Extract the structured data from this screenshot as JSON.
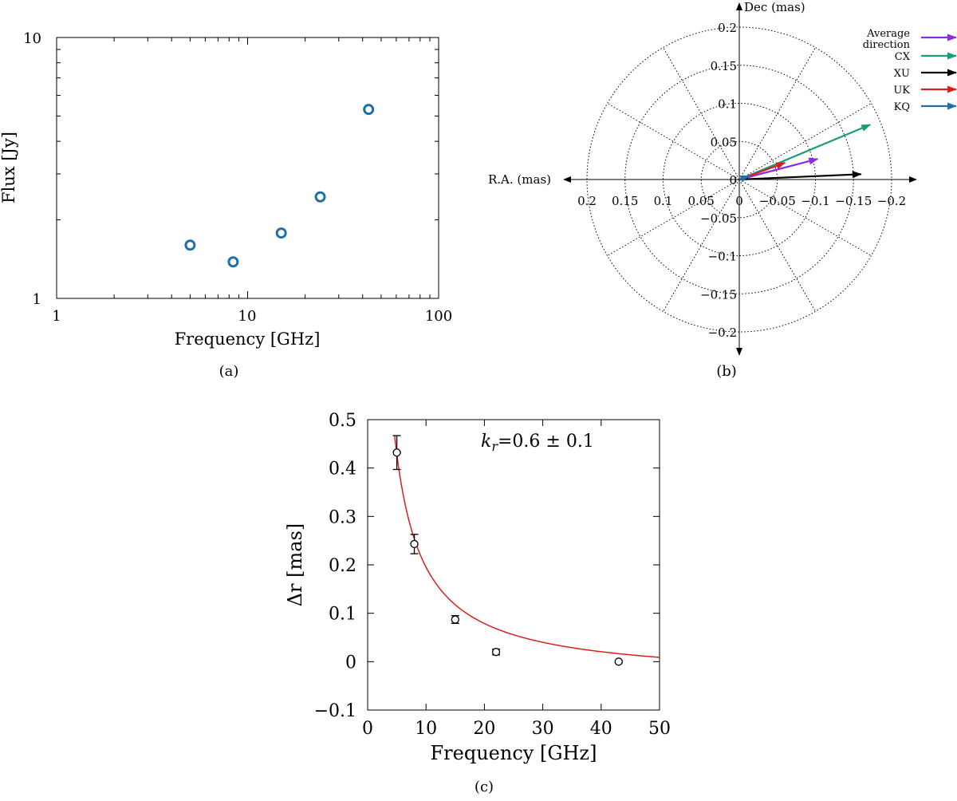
{
  "chart_data": [
    {
      "type": "scatter",
      "panel": "(a)",
      "xlabel": "Frequency [GHz]",
      "ylabel": "Flux [Jy]",
      "xscale": "log",
      "yscale": "log",
      "xlim": [
        1,
        100
      ],
      "ylim": [
        1,
        10
      ],
      "x_tick_labels": [
        "1",
        "10",
        "100"
      ],
      "y_tick_labels": [
        "1",
        "10"
      ],
      "grid": false,
      "series": [
        {
          "color": "#1f6fa8",
          "marker": "open-circle",
          "x": [
            5,
            8.4,
            15,
            24,
            43
          ],
          "y": [
            1.6,
            1.38,
            1.78,
            2.45,
            5.3
          ]
        }
      ]
    },
    {
      "type": "polar-vector",
      "panel": "(b)",
      "xlabel": "R.A. (mas)",
      "ylabel": "Dec (mas)",
      "rmax": 0.2,
      "ra_tick_labels": [
        "0.2",
        "0.15",
        "0.1",
        "0.05",
        "0",
        "−0.05",
        "−0.1",
        "−0.15",
        "−0.2"
      ],
      "dec_tick_labels": [
        "0.2",
        "0.15",
        "0.1",
        "0.05",
        "0",
        "−0.05",
        "−0.1",
        "−0.15",
        "−0.2"
      ],
      "ring_radii": [
        0.05,
        0.1,
        0.15,
        0.2
      ],
      "spoke_angles_deg": [
        0,
        30,
        60,
        90,
        120,
        150,
        180,
        210,
        240,
        270,
        300,
        330
      ],
      "grid": true,
      "legend_position": "top-right",
      "vectors": [
        {
          "name": "Average direction",
          "color": "#8a2be2",
          "ra": -0.103,
          "dec": 0.027
        },
        {
          "name": "CX",
          "color": "#1a9b7a",
          "ra": -0.172,
          "dec": 0.072
        },
        {
          "name": "XU",
          "color": "#000000",
          "ra": -0.16,
          "dec": 0.007
        },
        {
          "name": "UK",
          "color": "#d62020",
          "ra": -0.06,
          "dec": 0.022
        },
        {
          "name": "KQ",
          "color": "#1f6fa8",
          "ra": -0.013,
          "dec": 0.005
        }
      ]
    },
    {
      "type": "scatter",
      "panel": "(c)",
      "xlabel": "Frequency [GHz]",
      "ylabel": "Δr [mas]",
      "xlim": [
        0,
        50
      ],
      "ylim": [
        -0.1,
        0.5
      ],
      "x_tick_labels": [
        "0",
        "10",
        "20",
        "30",
        "40",
        "50"
      ],
      "y_tick_labels": [
        "−0.1",
        "0",
        "0.1",
        "0.2",
        "0.3",
        "0.4",
        "0.5"
      ],
      "grid": false,
      "annotation_italic": "k",
      "annotation_sub": "r",
      "annotation_rest": "=0.6 ± 0.1",
      "series": [
        {
          "color": "#000000",
          "marker": "open-circle-errorbar",
          "x": [
            5,
            8,
            15,
            22,
            43
          ],
          "y": [
            0.432,
            0.243,
            0.087,
            0.02,
            0.0
          ],
          "err": [
            0.035,
            0.02,
            0.008,
            0.006,
            0.002
          ]
        }
      ],
      "fit": {
        "color": "#d62020",
        "a": 2.33,
        "k": 1.0,
        "c": -0.0377,
        "x_from": 4.62,
        "x_to": 50
      }
    }
  ],
  "captions": {
    "a": "(a)",
    "b": "(b)",
    "c": "(c)"
  }
}
